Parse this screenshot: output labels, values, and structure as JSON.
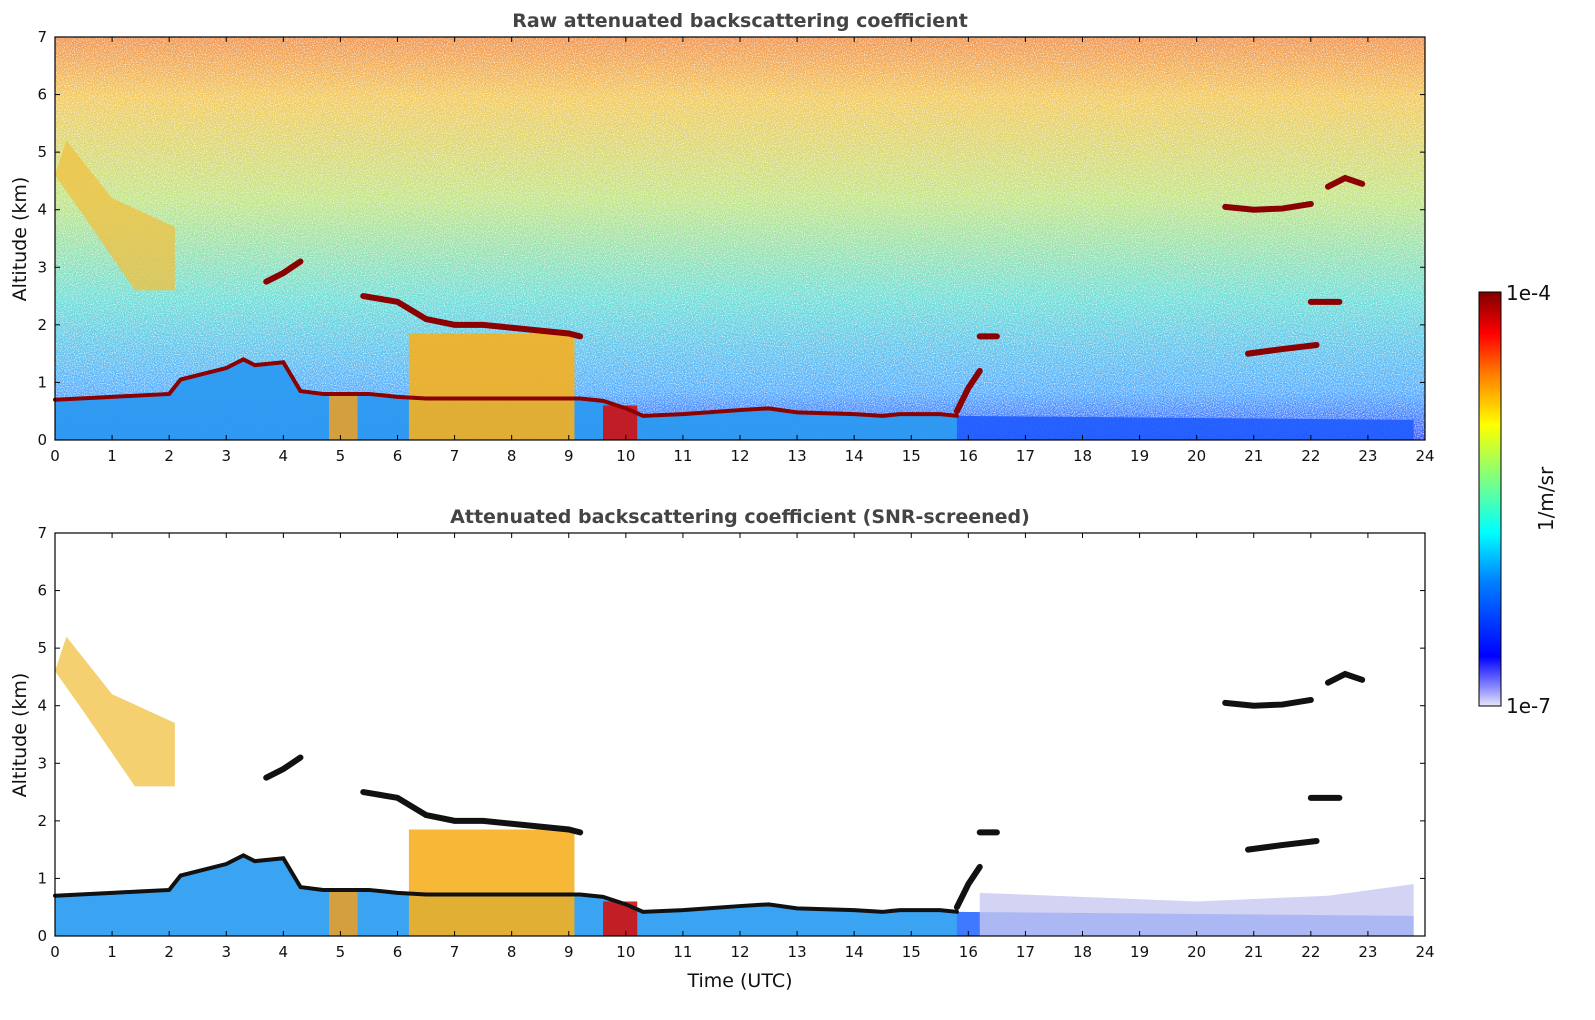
{
  "chart_data": [
    {
      "type": "heatmap",
      "title": "Raw attenuated backscattering coefficient",
      "xlabel": "",
      "ylabel": "Altitude (km)",
      "xlim": [
        0,
        24
      ],
      "ylim": [
        0,
        7
      ],
      "x_ticks": [
        0,
        1,
        2,
        3,
        4,
        5,
        6,
        7,
        8,
        9,
        10,
        11,
        12,
        13,
        14,
        15,
        16,
        17,
        18,
        19,
        20,
        21,
        22,
        23,
        24
      ],
      "y_ticks": [
        0,
        1,
        2,
        3,
        4,
        5,
        6,
        7
      ],
      "screened": false,
      "features": [
        {
          "name": "boundary layer top",
          "x": [
            0,
            1,
            2,
            2.2,
            3,
            3.3,
            3.5,
            4,
            4.3,
            4.7,
            5.5,
            6,
            6.5,
            7,
            8,
            9,
            9.2,
            9.6,
            10,
            10.3,
            11,
            12,
            12.5,
            13,
            14,
            14.5,
            14.8,
            15,
            15.5,
            15.8
          ],
          "y": [
            0.7,
            0.75,
            0.8,
            1.05,
            1.25,
            1.4,
            1.3,
            1.35,
            0.85,
            0.8,
            0.8,
            0.75,
            0.72,
            0.72,
            0.72,
            0.72,
            0.72,
            0.68,
            0.55,
            0.42,
            0.45,
            0.52,
            0.55,
            0.48,
            0.45,
            0.42,
            0.45,
            0.45,
            0.45,
            0.42
          ]
        },
        {
          "name": "elevated layer",
          "x": [
            3.7,
            4.0,
            4.3
          ],
          "y": [
            2.75,
            2.9,
            3.1
          ]
        },
        {
          "name": "elevated layer",
          "x": [
            5.4,
            6.0,
            6.5,
            7.0,
            7.5,
            8.0,
            8.5,
            9.0,
            9.2
          ],
          "y": [
            2.5,
            2.4,
            2.1,
            2.0,
            2.0,
            1.95,
            1.9,
            1.85,
            1.8
          ]
        },
        {
          "name": "layer",
          "x": [
            15.8,
            16.0,
            16.2
          ],
          "y": [
            0.5,
            0.9,
            1.2
          ]
        },
        {
          "name": "layer",
          "x": [
            16.2,
            16.5
          ],
          "y": [
            1.8,
            1.8
          ]
        },
        {
          "name": "cirrus",
          "x": [
            20.5,
            21.0,
            21.5,
            22.0
          ],
          "y": [
            4.05,
            4.0,
            4.02,
            4.1
          ]
        },
        {
          "name": "cirrus",
          "x": [
            22.3,
            22.6,
            22.9
          ],
          "y": [
            4.4,
            4.55,
            4.45
          ]
        },
        {
          "name": "layer",
          "x": [
            20.9,
            21.5,
            22.1
          ],
          "y": [
            1.5,
            1.58,
            1.65
          ]
        },
        {
          "name": "layer",
          "x": [
            22.0,
            22.5
          ],
          "y": [
            2.4,
            2.4
          ]
        }
      ]
    },
    {
      "type": "heatmap",
      "title": "Attenuated backscattering coefficient (SNR-screened)",
      "xlabel": "Time (UTC)",
      "ylabel": "Altitude (km)",
      "xlim": [
        0,
        24
      ],
      "ylim": [
        0,
        7
      ],
      "x_ticks": [
        0,
        1,
        2,
        3,
        4,
        5,
        6,
        7,
        8,
        9,
        10,
        11,
        12,
        13,
        14,
        15,
        16,
        17,
        18,
        19,
        20,
        21,
        22,
        23,
        24
      ],
      "y_ticks": [
        0,
        1,
        2,
        3,
        4,
        5,
        6,
        7
      ],
      "screened": true
    }
  ],
  "colorbar": {
    "label": "1/m/sr",
    "min_label": "1e-7",
    "max_label": "1e-4",
    "scale": "log",
    "colors": [
      "#00007f",
      "#0000ff",
      "#007fff",
      "#00ffff",
      "#7fff7f",
      "#ffff00",
      "#ff7f00",
      "#ff0000",
      "#7f0000"
    ]
  }
}
